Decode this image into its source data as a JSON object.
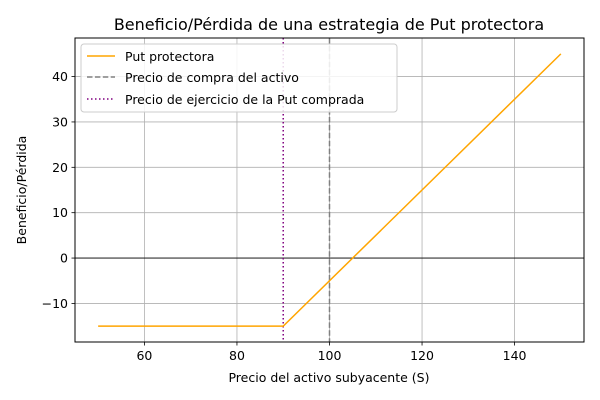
{
  "chart_data": {
    "type": "line",
    "title": "Beneficio/Pérdida de una estrategia de Put protectora",
    "xlabel": "Precio del activo subyacente (S)",
    "ylabel": "Beneficio/Pérdida",
    "xlim": [
      45,
      155
    ],
    "ylim": [
      -18.5,
      48.5
    ],
    "xticks": [
      60,
      80,
      100,
      120,
      140
    ],
    "yticks": [
      -10,
      0,
      10,
      20,
      30,
      40
    ],
    "grid": true,
    "legend_position": "top-left",
    "series": [
      {
        "name": "Put protectora",
        "color": "#ffa500",
        "style": "solid",
        "x": [
          50,
          90,
          150
        ],
        "y": [
          -15,
          -15,
          45
        ]
      }
    ],
    "vlines": [
      {
        "name": "Precio de compra del activo",
        "x": 100,
        "color": "#808080",
        "style": "dashed"
      },
      {
        "name": "Precio de ejercicio de la Put comprada",
        "x": 90,
        "color": "#800080",
        "style": "dotted"
      }
    ],
    "hlines": [
      {
        "y": 0,
        "color": "#000000",
        "style": "solid"
      }
    ]
  }
}
